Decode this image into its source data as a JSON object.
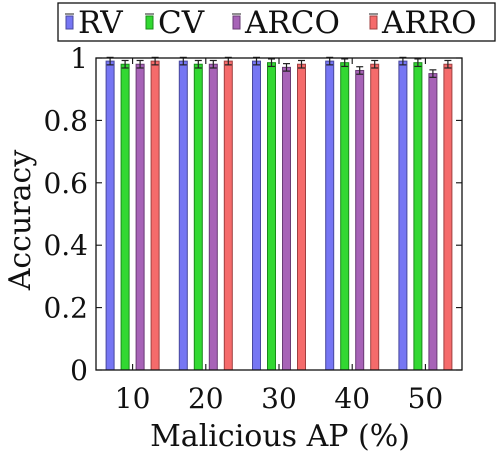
{
  "chart_data": {
    "type": "bar",
    "categories": [
      "10",
      "20",
      "30",
      "40",
      "50"
    ],
    "xlabel": "Malicious AP (%)",
    "ylabel": "Accuracy",
    "ylim": [
      0,
      1
    ],
    "yticks": [
      "0",
      "0.2",
      "0.4",
      "0.6",
      "0.8",
      "1"
    ],
    "legend_position": "top",
    "grid": false,
    "series": [
      {
        "name": "RV",
        "color": "#6f6ff2",
        "values": [
          0.99,
          0.99,
          0.99,
          0.99,
          0.99
        ],
        "errors": [
          0.012,
          0.012,
          0.012,
          0.012,
          0.012
        ]
      },
      {
        "name": "CV",
        "color": "#27d627",
        "values": [
          0.98,
          0.98,
          0.985,
          0.985,
          0.985
        ],
        "errors": [
          0.012,
          0.012,
          0.012,
          0.012,
          0.012
        ]
      },
      {
        "name": "ARCO",
        "color": "#a25bb3",
        "values": [
          0.98,
          0.98,
          0.97,
          0.96,
          0.95
        ],
        "errors": [
          0.012,
          0.012,
          0.012,
          0.012,
          0.012
        ]
      },
      {
        "name": "ARRO",
        "color": "#f46363",
        "values": [
          0.99,
          0.99,
          0.98,
          0.98,
          0.98
        ],
        "errors": [
          0.012,
          0.012,
          0.012,
          0.012,
          0.012
        ]
      }
    ]
  }
}
